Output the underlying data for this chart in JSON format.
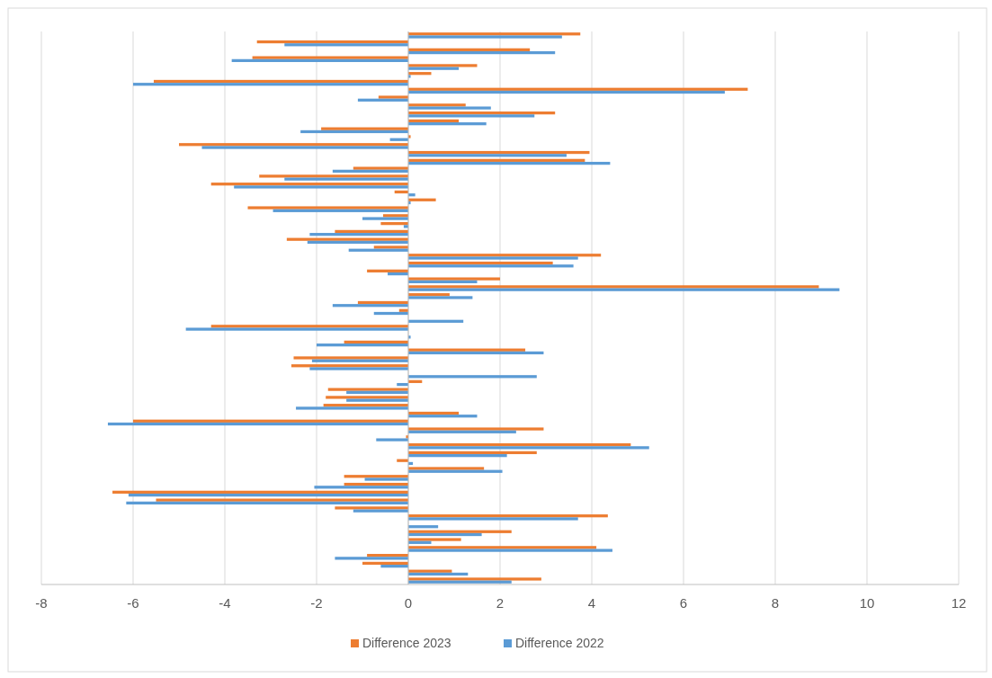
{
  "chart_data": {
    "type": "bar",
    "orientation": "horizontal",
    "categories": [
      null,
      null,
      null,
      null,
      null,
      null,
      null,
      null,
      null,
      null,
      null,
      null,
      null,
      null,
      null,
      null,
      null,
      null,
      null,
      null,
      null,
      null,
      null,
      null,
      null,
      null,
      null,
      null,
      null,
      null,
      null,
      null,
      null,
      null,
      null,
      null,
      null,
      null,
      null,
      null,
      null,
      null,
      null,
      null,
      null,
      null,
      null,
      null,
      null,
      null,
      null,
      null,
      null,
      null,
      null,
      null,
      null,
      null,
      null,
      null,
      null,
      null,
      null,
      null,
      null,
      null,
      null,
      null,
      null,
      null
    ],
    "series": [
      {
        "name": "Difference 2023",
        "color": "#ed7d31",
        "values": [
          3.75,
          -3.3,
          2.65,
          -3.4,
          1.5,
          0.5,
          -5.55,
          7.4,
          -0.65,
          1.25,
          3.2,
          1.1,
          -1.9,
          0.05,
          -5.0,
          3.95,
          3.85,
          -1.2,
          -3.25,
          -4.3,
          -0.3,
          0.6,
          -3.5,
          -0.55,
          -0.6,
          -1.6,
          -2.65,
          -0.75,
          4.2,
          3.15,
          -0.9,
          2.0,
          8.95,
          0.9,
          -1.1,
          -0.2,
          0,
          -4.3,
          0,
          -1.4,
          2.55,
          -2.5,
          -2.55,
          0,
          0.3,
          -1.75,
          -1.8,
          -1.85,
          1.1,
          -6.0,
          2.95,
          -0.05,
          4.85,
          2.8,
          -0.25,
          1.65,
          -1.4,
          -1.4,
          -6.45,
          -5.5,
          -1.6,
          4.35,
          0,
          2.25,
          1.15,
          4.1,
          -0.9,
          -1.0,
          0.95,
          2.9
        ]
      },
      {
        "name": "Difference 2022",
        "color": "#5b9bd5",
        "values": [
          3.35,
          -2.7,
          3.2,
          -3.85,
          1.1,
          0.05,
          -6.0,
          6.9,
          -1.1,
          1.8,
          2.75,
          1.7,
          -2.35,
          -0.4,
          -4.5,
          3.45,
          4.4,
          -1.65,
          -2.7,
          -3.8,
          0.15,
          0.05,
          -2.95,
          -1.0,
          -0.1,
          -2.15,
          -2.2,
          -1.3,
          3.7,
          3.6,
          -0.45,
          1.5,
          9.4,
          1.4,
          -1.65,
          -0.75,
          1.2,
          -4.85,
          0.05,
          -2.0,
          2.95,
          -2.1,
          -2.15,
          2.8,
          -0.25,
          -1.35,
          -1.35,
          -2.45,
          1.5,
          -6.55,
          2.35,
          -0.7,
          5.25,
          2.15,
          0.1,
          2.05,
          -0.95,
          -2.05,
          -6.1,
          -6.15,
          -1.2,
          3.7,
          0.65,
          1.6,
          0.5,
          4.45,
          -1.6,
          -0.6,
          1.3,
          2.25
        ]
      }
    ],
    "xlim": [
      -8,
      12
    ],
    "xticks": [
      -8,
      -6,
      -4,
      -2,
      0,
      2,
      4,
      6,
      8,
      10,
      12
    ],
    "grid": "x",
    "legend": "bottom"
  }
}
